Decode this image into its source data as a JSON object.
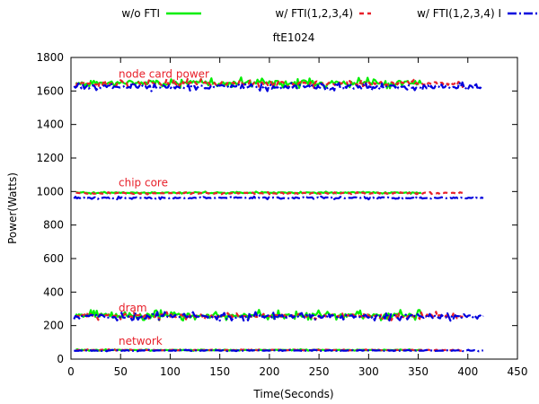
{
  "chart_data": {
    "type": "line",
    "title": "ftE1024",
    "xlabel": "Time(Seconds)",
    "ylabel": "Power(Watts)",
    "xlim": [
      0,
      450
    ],
    "ylim": [
      0,
      1800
    ],
    "xticks": [
      0,
      50,
      100,
      150,
      200,
      250,
      300,
      350,
      400,
      450
    ],
    "yticks": [
      0,
      200,
      400,
      600,
      800,
      1000,
      1200,
      1400,
      1600,
      1800
    ],
    "grid": false,
    "legend_position": "top",
    "annotations": [
      {
        "text": "node card power",
        "x": 48,
        "y": 1680
      },
      {
        "text": "chip core",
        "x": 48,
        "y": 1030
      },
      {
        "text": "dram",
        "x": 48,
        "y": 285
      },
      {
        "text": "network",
        "x": 48,
        "y": 85
      }
    ],
    "annotation_color": "#e8202a",
    "series": [
      {
        "name": "w/o FTI",
        "color": "#00ee00",
        "style": "solid",
        "x_range": [
          5,
          354
        ],
        "groups": [
          {
            "base": 1650,
            "amp": 22,
            "noise": 12
          },
          {
            "base": 993,
            "amp": 4,
            "noise": 3
          },
          {
            "base": 262,
            "amp": 22,
            "noise": 10
          },
          {
            "base": 54,
            "amp": 3,
            "noise": 2
          }
        ]
      },
      {
        "name": "w/ FTI(1,2,3,4)",
        "color": "#e8202a",
        "style": "dashed",
        "x_range": [
          5,
          396
        ],
        "groups": [
          {
            "base": 1645,
            "amp": 18,
            "noise": 10
          },
          {
            "base": 990,
            "amp": 4,
            "noise": 3
          },
          {
            "base": 258,
            "amp": 18,
            "noise": 9
          },
          {
            "base": 54,
            "amp": 3,
            "noise": 2
          }
        ]
      },
      {
        "name": "w/ FTI(1,2,3,4) I",
        "color": "#0000dd",
        "style": "dashdot",
        "x_range": [
          3,
          416
        ],
        "groups": [
          {
            "base": 1625,
            "amp": 18,
            "noise": 10
          },
          {
            "base": 962,
            "amp": 5,
            "noise": 4
          },
          {
            "base": 255,
            "amp": 18,
            "noise": 9
          },
          {
            "base": 51,
            "amp": 3,
            "noise": 2
          }
        ]
      }
    ]
  }
}
